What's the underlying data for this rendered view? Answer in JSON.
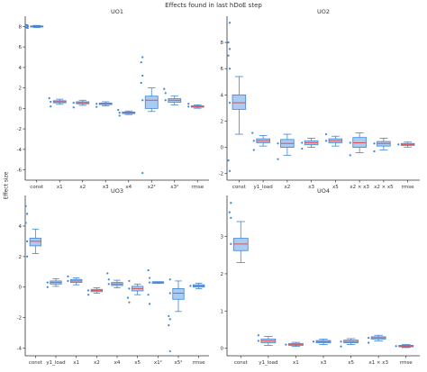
{
  "figure": {
    "title": "Effects found in last hDoE step",
    "ylabel": "Effect size"
  },
  "colors": {
    "box_fill": "#aacbf2",
    "box_edge": "#3d85d8",
    "point": "#3d85d8",
    "median": "#d9534f",
    "axis": "#333333"
  },
  "chart_data": [
    {
      "type": "box",
      "title": "UO1",
      "categories": [
        "const",
        "x1",
        "x2",
        "x3",
        "x4",
        "x2²",
        "x3²",
        "rmse"
      ],
      "ylim": [
        -7,
        9
      ],
      "yticks": [
        -6,
        -4,
        -2,
        0,
        2,
        4,
        6,
        8
      ],
      "boxes": [
        {
          "q1": 7.95,
          "median": 8.0,
          "q3": 8.05,
          "lo": 7.9,
          "hi": 8.1,
          "outliers": [
            7.85,
            7.9,
            8.1,
            8.15
          ]
        },
        {
          "q1": 0.55,
          "median": 0.65,
          "q3": 0.75,
          "lo": 0.4,
          "hi": 0.9,
          "outliers": [
            0.2,
            1.0
          ]
        },
        {
          "q1": 0.45,
          "median": 0.55,
          "q3": 0.65,
          "lo": 0.3,
          "hi": 0.8,
          "outliers": [
            0.1
          ]
        },
        {
          "q1": 0.38,
          "median": 0.45,
          "q3": 0.52,
          "lo": 0.25,
          "hi": 0.65,
          "outliers": [
            0.15
          ]
        },
        {
          "q1": -0.5,
          "median": -0.42,
          "q3": -0.35,
          "lo": -0.6,
          "hi": -0.25,
          "outliers": [
            -0.7,
            -0.15
          ]
        },
        {
          "q1": 0.0,
          "median": 0.8,
          "q3": 1.2,
          "lo": -0.3,
          "hi": 2.0,
          "outliers": [
            -6.3,
            2.5,
            3.2,
            4.5,
            5.0
          ]
        },
        {
          "q1": 0.6,
          "median": 0.8,
          "q3": 0.95,
          "lo": 0.35,
          "hi": 1.2,
          "outliers": [
            1.5,
            1.9
          ]
        },
        {
          "q1": 0.12,
          "median": 0.18,
          "q3": 0.25,
          "lo": 0.02,
          "hi": 0.35,
          "outliers": [
            0.45
          ]
        }
      ]
    },
    {
      "type": "box",
      "title": "UO2",
      "categories": [
        "const",
        "y1_load",
        "x2",
        "x3",
        "x5",
        "x2 × x3",
        "x2 × x5",
        "rmse"
      ],
      "ylim": [
        -2.5,
        10
      ],
      "yticks": [
        -2,
        0,
        2,
        4,
        6,
        8
      ],
      "boxes": [
        {
          "q1": 2.9,
          "median": 3.4,
          "q3": 4.0,
          "lo": 1.0,
          "hi": 5.4,
          "outliers": [
            -1.8,
            -1.0,
            6.0,
            7.0,
            7.5,
            8.0,
            9.5
          ]
        },
        {
          "q1": 0.35,
          "median": 0.5,
          "q3": 0.65,
          "lo": 0.1,
          "hi": 0.9,
          "outliers": [
            -0.2,
            1.1
          ]
        },
        {
          "q1": 0.0,
          "median": 0.3,
          "q3": 0.6,
          "lo": -0.6,
          "hi": 1.0,
          "outliers": [
            -0.9
          ]
        },
        {
          "q1": 0.2,
          "median": 0.35,
          "q3": 0.5,
          "lo": 0.0,
          "hi": 0.7,
          "outliers": [
            -0.1
          ]
        },
        {
          "q1": 0.35,
          "median": 0.5,
          "q3": 0.65,
          "lo": 0.1,
          "hi": 0.85,
          "outliers": [
            1.0
          ]
        },
        {
          "q1": 0.0,
          "median": 0.35,
          "q3": 0.75,
          "lo": -0.4,
          "hi": 1.1,
          "outliers": [
            -0.6
          ]
        },
        {
          "q1": 0.1,
          "median": 0.3,
          "q3": 0.45,
          "lo": -0.2,
          "hi": 0.7,
          "outliers": [
            -0.3
          ]
        },
        {
          "q1": 0.15,
          "median": 0.22,
          "q3": 0.3,
          "lo": 0.02,
          "hi": 0.4,
          "outliers": []
        }
      ]
    },
    {
      "type": "box",
      "title": "UO3",
      "categories": [
        "const",
        "y1_load",
        "x1",
        "x2",
        "x4",
        "x5",
        "x1²",
        "x5²",
        "rmse"
      ],
      "ylim": [
        -4.5,
        6
      ],
      "yticks": [
        -4,
        -2,
        0,
        2,
        4
      ],
      "boxes": [
        {
          "q1": 2.7,
          "median": 3.0,
          "q3": 3.2,
          "lo": 2.2,
          "hi": 3.8,
          "outliers": [
            2.0,
            4.2,
            4.8,
            5.3
          ]
        },
        {
          "q1": 0.2,
          "median": 0.3,
          "q3": 0.4,
          "lo": 0.05,
          "hi": 0.55,
          "outliers": [
            0.0
          ]
        },
        {
          "q1": 0.3,
          "median": 0.4,
          "q3": 0.5,
          "lo": 0.15,
          "hi": 0.6,
          "outliers": [
            0.7
          ]
        },
        {
          "q1": -0.3,
          "median": -0.22,
          "q3": -0.15,
          "lo": -0.4,
          "hi": -0.05,
          "outliers": [
            -0.5
          ]
        },
        {
          "q1": 0.1,
          "median": 0.2,
          "q3": 0.3,
          "lo": -0.05,
          "hi": 0.45,
          "outliers": [
            0.5,
            0.9
          ]
        },
        {
          "q1": -0.25,
          "median": -0.1,
          "q3": 0.05,
          "lo": -0.5,
          "hi": 0.2,
          "outliers": [
            -1.0,
            -0.7,
            0.4
          ]
        },
        {
          "q1": 0.25,
          "median": 0.3,
          "q3": 0.35,
          "lo": 0.25,
          "hi": 0.35,
          "outliers": [
            -1.1,
            -0.5,
            0.6,
            1.1
          ]
        },
        {
          "q1": -0.8,
          "median": -0.4,
          "q3": -0.1,
          "lo": -1.6,
          "hi": 0.4,
          "outliers": [
            -4.2,
            -2.5,
            -2.1,
            -1.9,
            0.5
          ]
        },
        {
          "q1": 0.0,
          "median": 0.08,
          "q3": 0.15,
          "lo": -0.1,
          "hi": 0.25,
          "outliers": []
        }
      ]
    },
    {
      "type": "box",
      "title": "UO4",
      "categories": [
        "const",
        "y1_load",
        "x1",
        "x3",
        "x5",
        "x1 × x3",
        "rmse"
      ],
      "ylim": [
        -0.2,
        4.1
      ],
      "yticks": [
        0,
        1,
        2,
        3
      ],
      "boxes": [
        {
          "q1": 2.62,
          "median": 2.8,
          "q3": 2.95,
          "lo": 2.3,
          "hi": 3.4,
          "outliers": [
            3.5,
            3.65,
            3.9
          ]
        },
        {
          "q1": 0.15,
          "median": 0.2,
          "q3": 0.25,
          "lo": 0.08,
          "hi": 0.32,
          "outliers": [
            0.35
          ]
        },
        {
          "q1": 0.08,
          "median": 0.1,
          "q3": 0.13,
          "lo": 0.05,
          "hi": 0.16,
          "outliers": []
        },
        {
          "q1": 0.15,
          "median": 0.18,
          "q3": 0.21,
          "lo": 0.1,
          "hi": 0.25,
          "outliers": []
        },
        {
          "q1": 0.15,
          "median": 0.18,
          "q3": 0.22,
          "lo": 0.1,
          "hi": 0.26,
          "outliers": [
            0.05
          ]
        },
        {
          "q1": 0.25,
          "median": 0.28,
          "q3": 0.31,
          "lo": 0.2,
          "hi": 0.35,
          "outliers": [
            0.15
          ]
        },
        {
          "q1": 0.04,
          "median": 0.06,
          "q3": 0.08,
          "lo": 0.02,
          "hi": 0.1,
          "outliers": []
        }
      ]
    }
  ]
}
